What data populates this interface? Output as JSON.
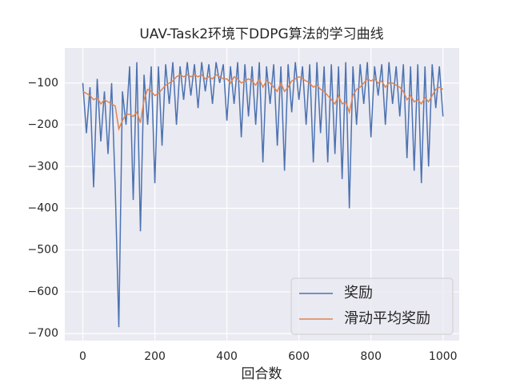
{
  "chart_data": {
    "type": "line",
    "title": "UAV-Task2环境下DDPG算法的学习曲线",
    "xlabel": "回合数",
    "x": [
      0,
      10,
      20,
      30,
      40,
      50,
      60,
      70,
      80,
      90,
      100,
      110,
      120,
      130,
      140,
      150,
      160,
      170,
      180,
      190,
      200,
      210,
      220,
      230,
      240,
      250,
      260,
      270,
      280,
      290,
      300,
      310,
      320,
      330,
      340,
      350,
      360,
      370,
      380,
      390,
      400,
      410,
      420,
      430,
      440,
      450,
      460,
      470,
      480,
      490,
      500,
      510,
      520,
      530,
      540,
      550,
      560,
      570,
      580,
      590,
      600,
      610,
      620,
      630,
      640,
      650,
      660,
      670,
      680,
      690,
      700,
      710,
      720,
      730,
      740,
      750,
      760,
      770,
      780,
      790,
      800,
      810,
      820,
      830,
      840,
      850,
      860,
      870,
      880,
      890,
      900,
      910,
      920,
      930,
      940,
      950,
      960,
      970,
      980,
      990,
      1000
    ],
    "series": [
      {
        "name": "奖励",
        "color": "#4c72b0",
        "values": [
          -100,
          -220,
          -110,
          -350,
          -90,
          -240,
          -120,
          -270,
          -100,
          -350,
          -685,
          -120,
          -200,
          -60,
          -380,
          -50,
          -455,
          -80,
          -200,
          -60,
          -340,
          -60,
          -250,
          -55,
          -150,
          -50,
          -200,
          -60,
          -140,
          -50,
          -130,
          -55,
          -160,
          -50,
          -120,
          -55,
          -150,
          -50,
          -100,
          -55,
          -190,
          -60,
          -150,
          -50,
          -230,
          -55,
          -180,
          -60,
          -200,
          -50,
          -290,
          -60,
          -150,
          -55,
          -250,
          -60,
          -310,
          -55,
          -170,
          -50,
          -140,
          -60,
          -200,
          -55,
          -290,
          -50,
          -220,
          -60,
          -290,
          -55,
          -270,
          -60,
          -330,
          -50,
          -400,
          -60,
          -200,
          -55,
          -150,
          -50,
          -230,
          -60,
          -130,
          -55,
          -200,
          -50,
          -150,
          -60,
          -180,
          -55,
          -280,
          -60,
          -310,
          -55,
          -340,
          -60,
          -300,
          -55,
          -160,
          -60,
          -180
        ]
      },
      {
        "name": "滑动平均奖励",
        "color": "#dd8452",
        "values": [
          -120,
          -125,
          -130,
          -140,
          -135,
          -150,
          -140,
          -145,
          -150,
          -155,
          -210,
          -190,
          -175,
          -175,
          -180,
          -170,
          -195,
          -140,
          -115,
          -120,
          -130,
          -125,
          -115,
          -105,
          -100,
          -95,
          -85,
          -80,
          -85,
          -80,
          -85,
          -80,
          -85,
          -80,
          -90,
          -85,
          -90,
          -80,
          -85,
          -90,
          -90,
          -100,
          -85,
          -90,
          -100,
          -95,
          -90,
          -95,
          -105,
          -90,
          -110,
          -95,
          -100,
          -110,
          -120,
          -100,
          -120,
          -110,
          -95,
          -90,
          -85,
          -90,
          -95,
          -100,
          -110,
          -105,
          -115,
          -120,
          -130,
          -140,
          -150,
          -130,
          -150,
          -145,
          -170,
          -130,
          -115,
          -110,
          -100,
          -90,
          -95,
          -90,
          -100,
          -95,
          -110,
          -100,
          -100,
          -105,
          -110,
          -120,
          -140,
          -130,
          -145,
          -140,
          -150,
          -135,
          -145,
          -130,
          -115,
          -110,
          -115
        ]
      }
    ],
    "xlim": [
      -50,
      1045
    ],
    "ylim": [
      -717,
      -16
    ],
    "xticks": [
      0,
      200,
      400,
      600,
      800,
      1000
    ],
    "yticks": [
      {
        "value": -700,
        "label": "−700"
      },
      {
        "value": -600,
        "label": "−600"
      },
      {
        "value": -500,
        "label": "−500"
      },
      {
        "value": -400,
        "label": "−400"
      },
      {
        "value": -300,
        "label": "−300"
      },
      {
        "value": -200,
        "label": "−200"
      },
      {
        "value": -100,
        "label": "−100"
      }
    ],
    "grid": true,
    "legend": "lower right"
  }
}
